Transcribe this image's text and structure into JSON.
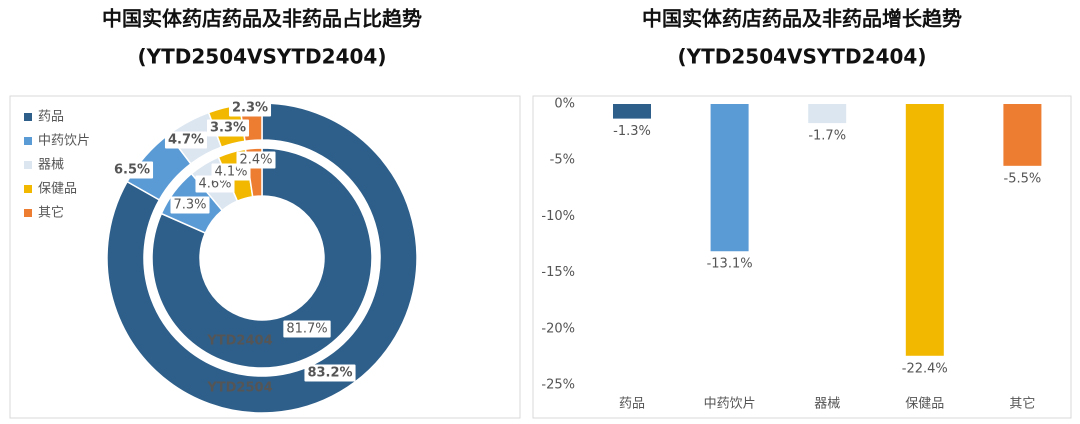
{
  "chart_data": [
    {
      "type": "donut",
      "title": "中国实体药店药品及非药品占比趋势",
      "subtitle": "(YTD2504VSYTD2404)",
      "categories": [
        "药品",
        "中药饮片",
        "器械",
        "保健品",
        "其它"
      ],
      "colors": [
        "#2e5f8a",
        "#5b9bd5",
        "#dce6f0",
        "#f2b800",
        "#ed7d31"
      ],
      "series": [
        {
          "name": "YTD2504",
          "values": [
            83.2,
            6.5,
            4.7,
            3.3,
            2.3
          ],
          "value_labels": [
            "83.2%",
            "6.5%",
            "4.7%",
            "3.3%",
            "2.3%"
          ]
        },
        {
          "name": "YTD2404",
          "values": [
            81.7,
            7.3,
            4.6,
            4.1,
            2.4
          ],
          "value_labels": [
            "81.7%",
            "7.3%",
            "4.6%",
            "4.1%",
            "2.4%"
          ]
        }
      ]
    },
    {
      "type": "bar",
      "title": "中国实体药店药品及非药品增长趋势",
      "subtitle": "(YTD2504VSYTD2404)",
      "categories": [
        "药品",
        "中药饮片",
        "器械",
        "保健品",
        "其它"
      ],
      "values": [
        -1.3,
        -13.1,
        -1.7,
        -22.4,
        -5.5
      ],
      "value_labels": [
        "-1.3%",
        "-13.1%",
        "-1.7%",
        "-22.4%",
        "-5.5%"
      ],
      "colors": [
        "#2e5f8a",
        "#5b9bd5",
        "#dce6f0",
        "#f2b800",
        "#ed7d31"
      ],
      "ylim": [
        -25,
        0
      ],
      "yticks": [
        {
          "value": 0,
          "label": "0%"
        },
        {
          "value": -5,
          "label": "-5%"
        },
        {
          "value": -10,
          "label": "-10%"
        },
        {
          "value": -15,
          "label": "-15%"
        },
        {
          "value": -20,
          "label": "-20%"
        },
        {
          "value": -25,
          "label": "-25%"
        }
      ],
      "grid": false
    }
  ]
}
